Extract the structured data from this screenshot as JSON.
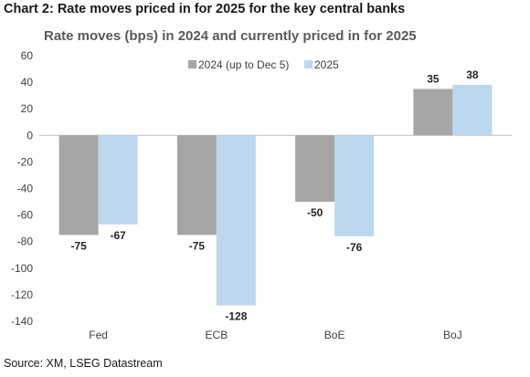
{
  "header": {
    "title": "Chart 2: Rate moves priced in for 2025 for the key central banks"
  },
  "footer": {
    "source": "Source: XM, LSEG Datastream"
  },
  "colors": {
    "series_2024": "#a6a6a6",
    "series_2025": "#bdd7ee",
    "axis_text": "#404040",
    "title_text": "#595959",
    "gridline": "#d9d9d9"
  },
  "chart_data": {
    "type": "bar",
    "title": "Rate moves (bps) in 2024 and currently priced in for 2025",
    "xlabel": "",
    "ylabel": "",
    "categories": [
      "Fed",
      "ECB",
      "BoE",
      "BoJ"
    ],
    "series": [
      {
        "name": "2024 (up to Dec 5)",
        "values": [
          -75,
          -75,
          -50,
          35
        ]
      },
      {
        "name": "2025",
        "values": [
          -67,
          -128,
          -76,
          38
        ]
      }
    ],
    "ylim": [
      -140,
      60
    ],
    "yticks": [
      60,
      40,
      20,
      0,
      -20,
      -40,
      -60,
      -80,
      -100,
      -120,
      -140
    ],
    "grid": false,
    "legend_position": "top-center",
    "data_labels": true
  }
}
